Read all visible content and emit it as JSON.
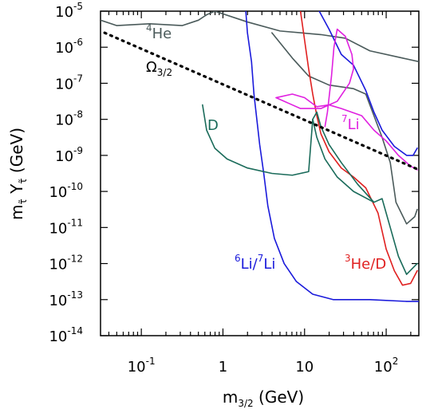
{
  "chart_data": {
    "type": "line",
    "xscale": "log",
    "yscale": "log",
    "xlim_exp": [
      -1.5,
      2.4
    ],
    "ylim_exp": [
      -14,
      -5
    ],
    "x_ticks": [
      {
        "exp": -1,
        "base": "10",
        "sup": "-1"
      },
      {
        "exp": 0,
        "base": "1",
        "sup": ""
      },
      {
        "exp": 1,
        "base": "10",
        "sup": ""
      },
      {
        "exp": 2,
        "base": "10",
        "sup": "2"
      }
    ],
    "y_ticks": [
      {
        "exp": -5,
        "base": "10",
        "sup": "-5"
      },
      {
        "exp": -6,
        "base": "10",
        "sup": "-6"
      },
      {
        "exp": -7,
        "base": "10",
        "sup": "-7"
      },
      {
        "exp": -8,
        "base": "10",
        "sup": "-8"
      },
      {
        "exp": -9,
        "base": "10",
        "sup": "-9"
      },
      {
        "exp": -10,
        "base": "10",
        "sup": "-10"
      },
      {
        "exp": -11,
        "base": "10",
        "sup": "-11"
      },
      {
        "exp": -12,
        "base": "10",
        "sup": "-12"
      },
      {
        "exp": -13,
        "base": "10",
        "sup": "-13"
      },
      {
        "exp": -14,
        "base": "10",
        "sup": "-14"
      }
    ],
    "xlabel": {
      "base": "m",
      "sub": "3/2",
      "unit": "(GeV)"
    },
    "ylabel": {
      "m": "m",
      "m_sub": "τ̃",
      "y": "Y",
      "y_sub": "τ̃",
      "unit": "(GeV)"
    },
    "series": [
      {
        "key": "he4",
        "color": "#4a5a5a",
        "style": "solid",
        "label": {
          "sup": "4",
          "text": "He"
        },
        "points": [
          [
            -1.5,
            -5.25
          ],
          [
            -1.3,
            -5.4
          ],
          [
            -0.9,
            -5.35
          ],
          [
            -0.5,
            -5.4
          ],
          [
            -0.3,
            -5.25
          ],
          [
            -0.2,
            -5.1
          ],
          [
            -0.1,
            -5.0
          ],
          [
            0.3,
            -5.3
          ],
          [
            0.7,
            -5.55
          ],
          [
            1.2,
            -5.65
          ],
          [
            1.5,
            -5.75
          ],
          [
            1.8,
            -6.1
          ],
          [
            2.2,
            -6.3
          ],
          [
            2.4,
            -6.4
          ]
        ]
      },
      {
        "key": "he4_b",
        "color": "#4a5a5a",
        "style": "solid",
        "points": [
          [
            0.6,
            -5.6
          ],
          [
            0.85,
            -6.3
          ],
          [
            1.05,
            -6.8
          ],
          [
            1.3,
            -7.05
          ],
          [
            1.6,
            -7.15
          ],
          [
            1.75,
            -7.3
          ],
          [
            1.85,
            -7.9
          ],
          [
            1.95,
            -8.5
          ],
          [
            2.05,
            -9.2
          ],
          [
            2.12,
            -10.3
          ],
          [
            2.25,
            -10.9
          ],
          [
            2.35,
            -10.7
          ],
          [
            2.38,
            -10.5
          ]
        ]
      },
      {
        "key": "li6li7",
        "color": "#1a1adb",
        "style": "solid",
        "label": {
          "sup1": "6",
          "text1": "Li/",
          "sup2": "7",
          "text2": "Li"
        },
        "points": [
          [
            0.28,
            -5.0
          ],
          [
            0.3,
            -5.6
          ],
          [
            0.35,
            -6.4
          ],
          [
            0.38,
            -7.3
          ],
          [
            0.42,
            -8.1
          ],
          [
            0.45,
            -8.7
          ],
          [
            0.5,
            -9.5
          ],
          [
            0.55,
            -10.4
          ],
          [
            0.63,
            -11.3
          ],
          [
            0.75,
            -12.0
          ],
          [
            0.9,
            -12.5
          ],
          [
            1.1,
            -12.85
          ],
          [
            1.35,
            -13.0
          ],
          [
            1.8,
            -13.0
          ],
          [
            2.25,
            -13.05
          ],
          [
            2.4,
            -13.05
          ]
        ]
      },
      {
        "key": "li6li7_b",
        "color": "#1a1adb",
        "style": "solid",
        "points": [
          [
            1.18,
            -5.0
          ],
          [
            1.3,
            -5.5
          ],
          [
            1.45,
            -6.2
          ],
          [
            1.6,
            -6.5
          ],
          [
            1.75,
            -7.2
          ],
          [
            1.85,
            -7.8
          ],
          [
            1.95,
            -8.3
          ],
          [
            2.1,
            -8.75
          ],
          [
            2.25,
            -9.0
          ],
          [
            2.33,
            -9.0
          ],
          [
            2.38,
            -8.8
          ]
        ]
      },
      {
        "key": "he3d",
        "color": "#e02020",
        "style": "solid",
        "label": {
          "sup": "3",
          "text": "He/D"
        },
        "points": [
          [
            0.95,
            -5.0
          ],
          [
            1.0,
            -5.8
          ],
          [
            1.05,
            -6.6
          ],
          [
            1.1,
            -7.3
          ],
          [
            1.15,
            -7.9
          ],
          [
            1.2,
            -8.4
          ],
          [
            1.3,
            -8.9
          ],
          [
            1.45,
            -9.35
          ],
          [
            1.6,
            -9.6
          ],
          [
            1.75,
            -9.9
          ],
          [
            1.9,
            -10.6
          ],
          [
            2.0,
            -11.6
          ],
          [
            2.1,
            -12.2
          ],
          [
            2.2,
            -12.6
          ],
          [
            2.3,
            -12.55
          ],
          [
            2.38,
            -12.2
          ]
        ]
      },
      {
        "key": "d_main",
        "color": "#1a6b5a",
        "style": "solid",
        "label": {
          "text": "D"
        },
        "points": [
          [
            -0.25,
            -7.6
          ],
          [
            -0.2,
            -8.3
          ],
          [
            -0.1,
            -8.8
          ],
          [
            0.05,
            -9.1
          ],
          [
            0.3,
            -9.35
          ],
          [
            0.6,
            -9.5
          ],
          [
            0.85,
            -9.55
          ],
          [
            1.05,
            -9.45
          ],
          [
            1.1,
            -8.0
          ],
          [
            1.15,
            -7.8
          ],
          [
            1.2,
            -8.2
          ],
          [
            1.3,
            -8.7
          ],
          [
            1.45,
            -9.2
          ],
          [
            1.65,
            -9.8
          ],
          [
            1.85,
            -10.3
          ],
          [
            1.95,
            -10.2
          ],
          [
            2.0,
            -10.6
          ],
          [
            2.05,
            -11.0
          ],
          [
            2.15,
            -11.8
          ],
          [
            2.25,
            -12.3
          ],
          [
            2.38,
            -12.0
          ]
        ]
      },
      {
        "key": "d_b",
        "color": "#1a6b5a",
        "style": "solid",
        "points": [
          [
            1.1,
            -8.0
          ],
          [
            1.15,
            -8.5
          ],
          [
            1.25,
            -9.1
          ],
          [
            1.4,
            -9.6
          ],
          [
            1.6,
            -10.0
          ],
          [
            1.85,
            -10.3
          ]
        ]
      },
      {
        "key": "li7",
        "color": "#e020e0",
        "style": "solid",
        "label": {
          "sup": "7",
          "text": "Li"
        },
        "points": [
          [
            1.25,
            -8.2
          ],
          [
            1.28,
            -7.8
          ],
          [
            1.3,
            -7.4
          ],
          [
            1.33,
            -6.8
          ],
          [
            1.36,
            -6.0
          ],
          [
            1.4,
            -5.5
          ],
          [
            1.5,
            -5.7
          ],
          [
            1.58,
            -6.2
          ],
          [
            1.6,
            -6.6
          ],
          [
            1.55,
            -7.0
          ],
          [
            1.4,
            -7.5
          ],
          [
            1.2,
            -7.7
          ],
          [
            0.95,
            -7.7
          ],
          [
            0.8,
            -7.55
          ],
          [
            0.65,
            -7.4
          ],
          [
            0.85,
            -7.3
          ],
          [
            1.0,
            -7.4
          ],
          [
            1.15,
            -7.65
          ],
          [
            1.3,
            -7.6
          ],
          [
            1.45,
            -7.7
          ],
          [
            1.7,
            -7.9
          ],
          [
            1.85,
            -8.3
          ],
          [
            2.0,
            -8.6
          ],
          [
            2.15,
            -9.0
          ],
          [
            2.3,
            -9.3
          ],
          [
            2.38,
            -9.4
          ]
        ]
      },
      {
        "key": "omega",
        "color": "#000000",
        "style": "dotted",
        "label": {
          "text": "Ω",
          "sub": "3/2"
        },
        "points": [
          [
            -1.45,
            -5.6
          ],
          [
            2.4,
            -9.4
          ]
        ]
      }
    ]
  }
}
